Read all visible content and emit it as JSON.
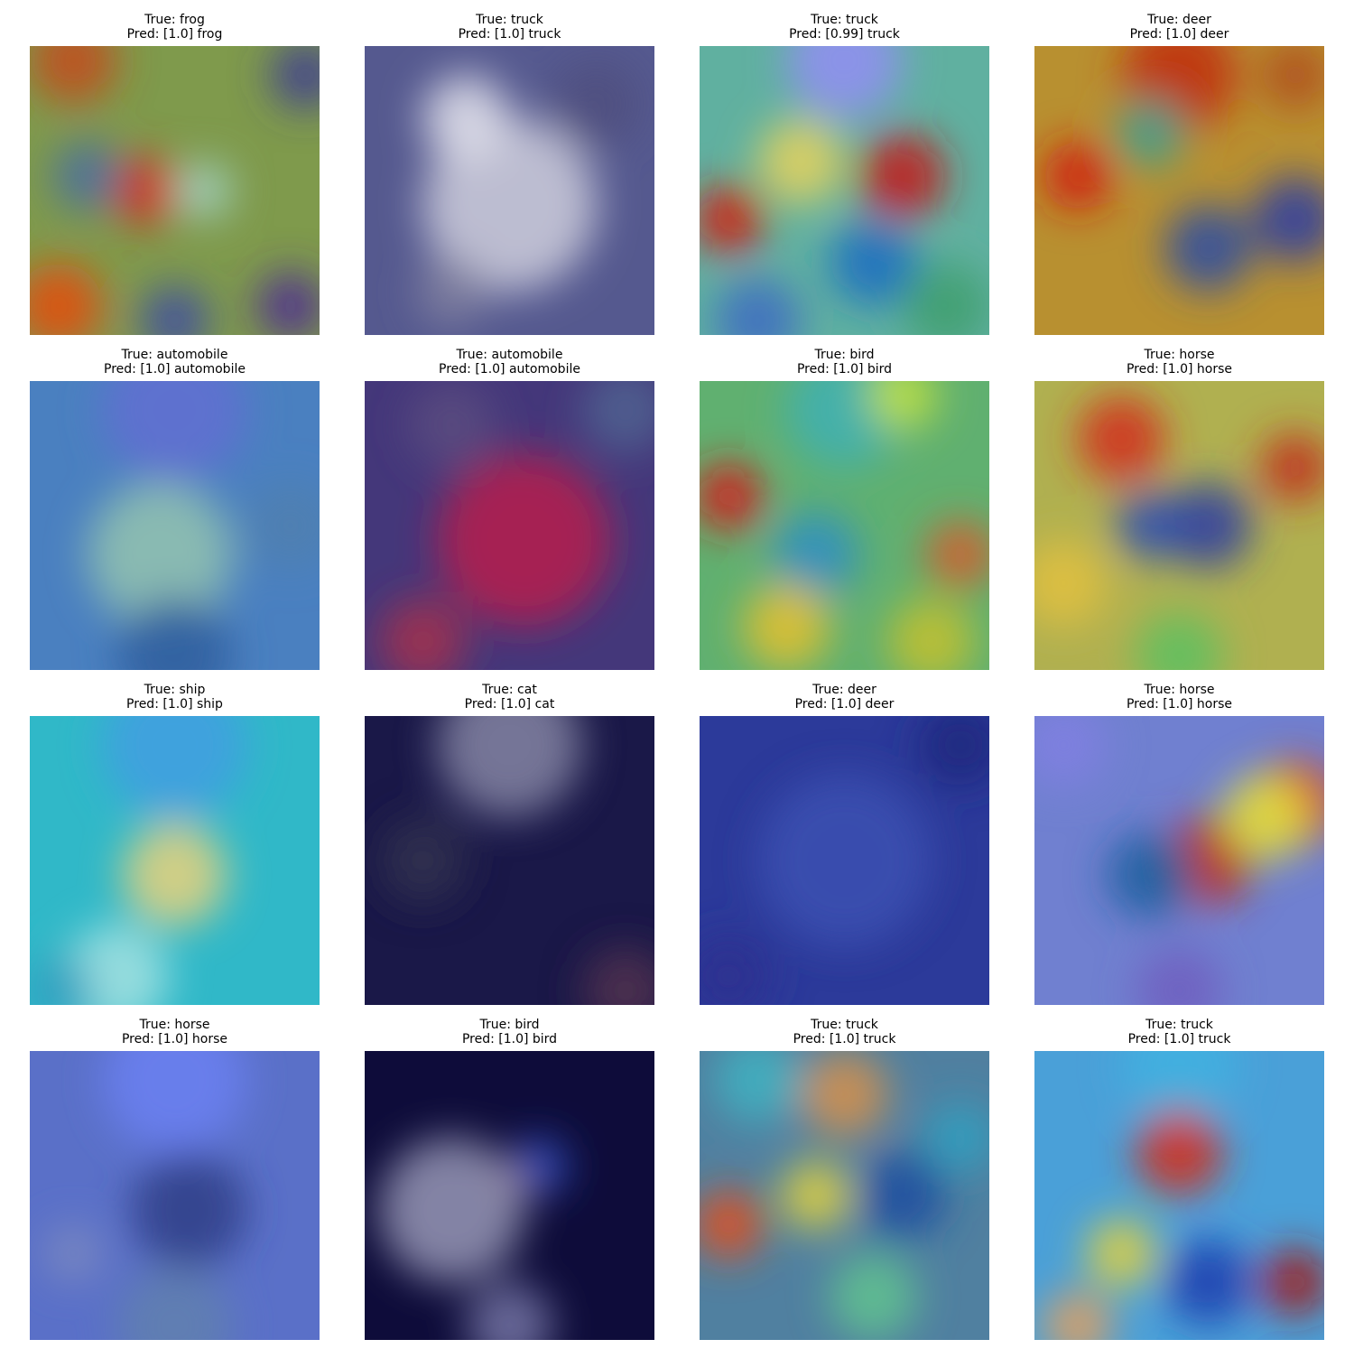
{
  "panels": [
    {
      "true_label": "True: frog",
      "pred_label": "Pred: [1.0] frog"
    },
    {
      "true_label": "True: truck",
      "pred_label": "Pred: [1.0] truck"
    },
    {
      "true_label": "True: truck",
      "pred_label": "Pred: [0.99] truck"
    },
    {
      "true_label": "True: deer",
      "pred_label": "Pred: [1.0] deer"
    },
    {
      "true_label": "True: automobile",
      "pred_label": "Pred: [1.0] automobile"
    },
    {
      "true_label": "True: automobile",
      "pred_label": "Pred: [1.0] automobile"
    },
    {
      "true_label": "True: bird",
      "pred_label": "Pred: [1.0] bird"
    },
    {
      "true_label": "True: horse",
      "pred_label": "Pred: [1.0] horse"
    },
    {
      "true_label": "True: ship",
      "pred_label": "Pred: [1.0] ship"
    },
    {
      "true_label": "True: cat",
      "pred_label": "Pred: [1.0] cat"
    },
    {
      "true_label": "True: deer",
      "pred_label": "Pred: [1.0] deer"
    },
    {
      "true_label": "True: horse",
      "pred_label": "Pred: [1.0] horse"
    },
    {
      "true_label": "True: horse",
      "pred_label": "Pred: [1.0] horse"
    },
    {
      "true_label": "True: bird",
      "pred_label": "Pred: [1.0] bird"
    },
    {
      "true_label": "True: truck",
      "pred_label": "Pred: [1.0] truck"
    },
    {
      "true_label": "True: truck",
      "pred_label": "Pred: [1.0] truck"
    }
  ]
}
